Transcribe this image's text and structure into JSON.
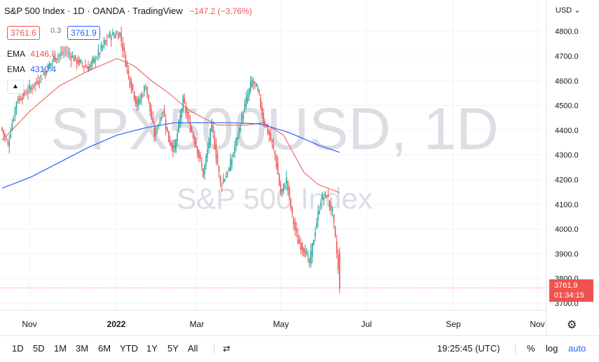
{
  "header": {
    "symbol": "S&P 500 Index",
    "interval": "1D",
    "broker": "OANDA",
    "platform": "TradingView",
    "change": "−147.2 (−3.76%)",
    "bid": "3761.6",
    "spread": "0.3",
    "ask": "3761.9"
  },
  "indicators": [
    {
      "name": "EMA",
      "value": "4146.8",
      "color": "#ef5350"
    },
    {
      "name": "EMA",
      "value": "4310.4",
      "color": "#2962ff"
    }
  ],
  "collapse_icon": "chevron-up-icon",
  "currency": "USD",
  "watermark": {
    "symbol": "SPX500USD, 1D",
    "name": "S&P 500 Index"
  },
  "last_price": {
    "value": "3761.9",
    "countdown": "01:34:15"
  },
  "settings_icon": "gear-icon",
  "toolbar": {
    "ranges": [
      "1D",
      "5D",
      "1M",
      "3M",
      "6M",
      "YTD",
      "1Y",
      "5Y",
      "All"
    ],
    "compare_icon": "compare-icon",
    "time": "19:25:45 (UTC)",
    "percent": "%",
    "log": "log",
    "auto": "auto"
  },
  "chart_data": {
    "type": "candlestick",
    "yticks": [
      "4800.0",
      "4700.0",
      "4600.0",
      "4500.0",
      "4400.0",
      "4300.0",
      "4200.0",
      "4100.0",
      "4000.0",
      "3900.0",
      "3800.0",
      "3700.0"
    ],
    "xticks": [
      "Nov",
      "2022",
      "Mar",
      "May",
      "Jul",
      "Sep",
      "Nov"
    ],
    "ylim": [
      3680,
      4870
    ],
    "colors": {
      "up": "#26a69a",
      "down": "#ef5350",
      "ema_fast": "#ef5350",
      "ema_slow": "#2962ff"
    },
    "anchors": [
      [
        0,
        4400
      ],
      [
        4,
        4340
      ],
      [
        10,
        4520
      ],
      [
        18,
        4560
      ],
      [
        28,
        4620
      ],
      [
        36,
        4690
      ],
      [
        44,
        4720
      ],
      [
        52,
        4680
      ],
      [
        60,
        4650
      ],
      [
        66,
        4700
      ],
      [
        74,
        4780
      ],
      [
        82,
        4790
      ],
      [
        88,
        4620
      ],
      [
        94,
        4500
      ],
      [
        100,
        4580
      ],
      [
        106,
        4380
      ],
      [
        112,
        4480
      ],
      [
        116,
        4360
      ],
      [
        120,
        4320
      ],
      [
        126,
        4520
      ],
      [
        130,
        4430
      ],
      [
        136,
        4320
      ],
      [
        140,
        4220
      ],
      [
        146,
        4420
      ],
      [
        152,
        4180
      ],
      [
        158,
        4240
      ],
      [
        164,
        4380
      ],
      [
        170,
        4520
      ],
      [
        174,
        4600
      ],
      [
        178,
        4560
      ],
      [
        182,
        4440
      ],
      [
        186,
        4380
      ],
      [
        190,
        4300
      ],
      [
        194,
        4140
      ],
      [
        198,
        4200
      ],
      [
        202,
        4050
      ],
      [
        206,
        3950
      ],
      [
        210,
        3920
      ],
      [
        214,
        3860
      ],
      [
        218,
        4000
      ],
      [
        222,
        4120
      ],
      [
        226,
        4140
      ],
      [
        230,
        4060
      ],
      [
        233,
        3900
      ],
      [
        235,
        3762
      ]
    ],
    "ema_fast": [
      [
        0,
        4360
      ],
      [
        20,
        4480
      ],
      [
        40,
        4580
      ],
      [
        60,
        4640
      ],
      [
        80,
        4690
      ],
      [
        92,
        4660
      ],
      [
        104,
        4600
      ],
      [
        116,
        4550
      ],
      [
        130,
        4480
      ],
      [
        150,
        4420
      ],
      [
        170,
        4420
      ],
      [
        182,
        4430
      ],
      [
        196,
        4380
      ],
      [
        210,
        4230
      ],
      [
        220,
        4180
      ],
      [
        235,
        4147
      ]
    ],
    "ema_slow": [
      [
        0,
        4165
      ],
      [
        20,
        4210
      ],
      [
        40,
        4270
      ],
      [
        60,
        4330
      ],
      [
        80,
        4380
      ],
      [
        100,
        4410
      ],
      [
        120,
        4430
      ],
      [
        140,
        4430
      ],
      [
        160,
        4430
      ],
      [
        180,
        4425
      ],
      [
        200,
        4390
      ],
      [
        220,
        4340
      ],
      [
        235,
        4310
      ]
    ]
  }
}
